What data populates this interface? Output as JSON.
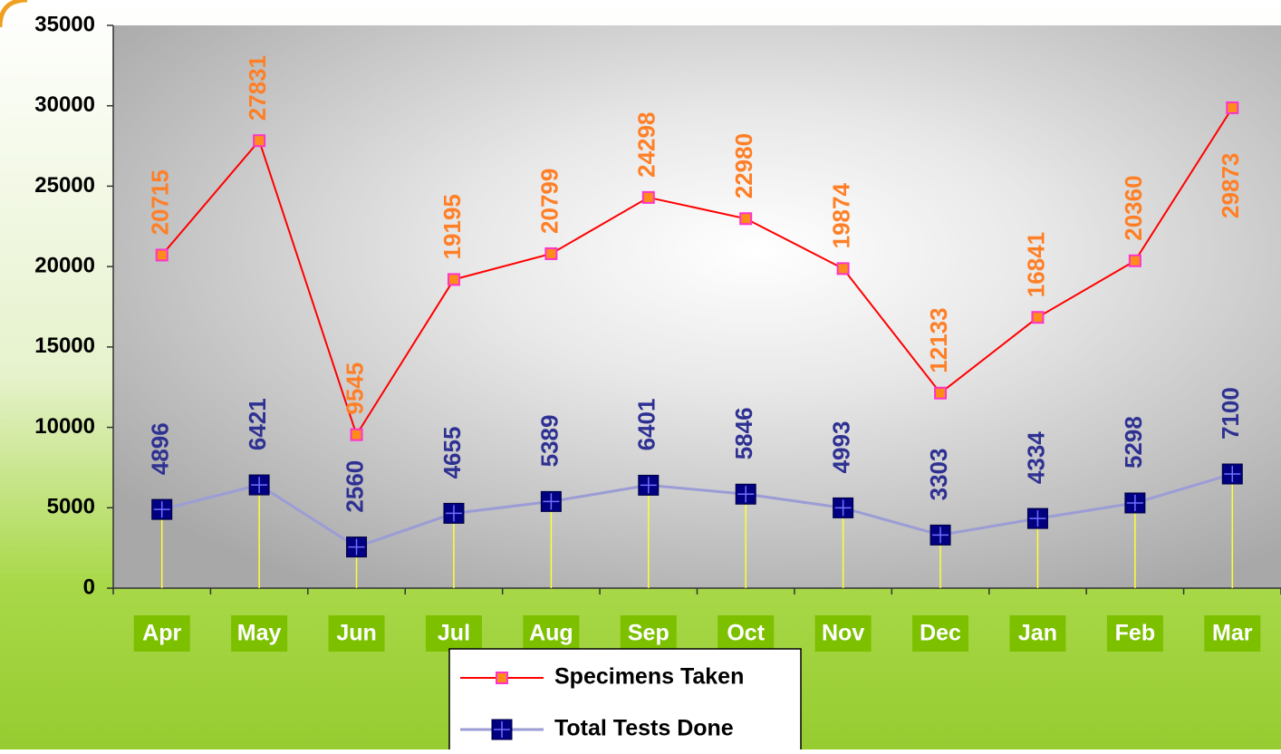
{
  "chart_data": {
    "type": "line",
    "categories": [
      "Apr",
      "May",
      "Jun",
      "Jul",
      "Aug",
      "Sep",
      "Oct",
      "Nov",
      "Dec",
      "Jan",
      "Feb",
      "Mar"
    ],
    "series": [
      {
        "name": "Specimens Taken",
        "color": "#ff0000",
        "marker_color": "#ff8c1a",
        "label_color": "#ff7f27",
        "values": [
          20715,
          27831,
          9545,
          19195,
          20799,
          24298,
          22980,
          19874,
          12133,
          16841,
          20360,
          29873
        ]
      },
      {
        "name": "Total Tests Done",
        "color": "#9c9cd6",
        "marker_color": "#000080",
        "label_color": "#2e3192",
        "values": [
          4896,
          6421,
          2560,
          4655,
          5389,
          6401,
          5846,
          4993,
          3303,
          4334,
          5298,
          7100
        ]
      }
    ],
    "ylim": [
      0,
      35000
    ],
    "yticks": [
      0,
      5000,
      10000,
      15000,
      20000,
      25000,
      30000,
      35000
    ],
    "drop_lines": true,
    "legend": "bottom"
  }
}
